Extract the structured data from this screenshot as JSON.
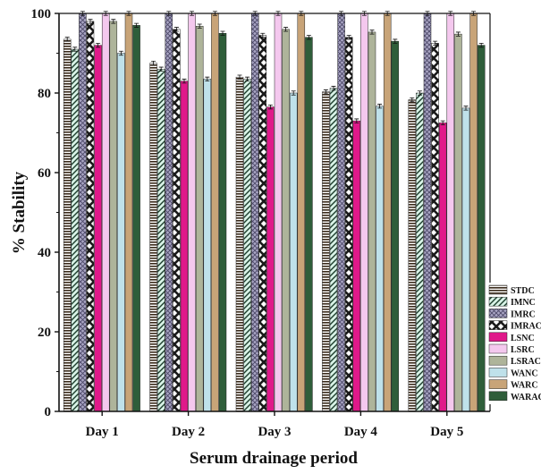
{
  "chart_data": {
    "type": "bar",
    "title": "",
    "xlabel": "Serum drainage period",
    "ylabel": "% Stability",
    "ylim": [
      0,
      100
    ],
    "yticks": [
      0,
      20,
      40,
      60,
      80,
      100
    ],
    "grid": false,
    "legend_position": "bottom-right",
    "categories": [
      "Day 1",
      "Day 2",
      "Day 3",
      "Day 4",
      "Day 5"
    ],
    "series": [
      {
        "name": "STDC",
        "values": [
          93.5,
          87.5,
          84.0,
          80.3,
          78.3
        ],
        "color": "#8a6a4a",
        "pattern": "hlines"
      },
      {
        "name": "IMNC",
        "values": [
          91.0,
          86.0,
          83.5,
          81.2,
          80.0
        ],
        "color": "#cfeee0",
        "pattern": "diag"
      },
      {
        "name": "IMRC",
        "values": [
          100,
          100,
          100,
          100,
          100
        ],
        "color": "#9a96b6",
        "pattern": "cross"
      },
      {
        "name": "IMRAC",
        "values": [
          98.0,
          96.0,
          94.5,
          94.0,
          92.5
        ],
        "color": "#ffffff",
        "pattern": "zigzag"
      },
      {
        "name": "LSNC",
        "values": [
          92.0,
          83.0,
          76.5,
          73.0,
          72.5
        ],
        "color": "#e0198a",
        "pattern": "solid"
      },
      {
        "name": "LSRC",
        "values": [
          100,
          100,
          100,
          100,
          100
        ],
        "color": "#f4c8ee",
        "pattern": "solid"
      },
      {
        "name": "LSRAC",
        "values": [
          98.0,
          96.8,
          96.0,
          95.3,
          94.8
        ],
        "color": "#aeb49a",
        "pattern": "solid"
      },
      {
        "name": "WANC",
        "values": [
          90.0,
          83.5,
          80.0,
          76.7,
          76.2
        ],
        "color": "#bfe1ea",
        "pattern": "solid"
      },
      {
        "name": "WARC",
        "values": [
          100,
          100,
          100,
          100,
          100
        ],
        "color": "#c8a478",
        "pattern": "solid"
      },
      {
        "name": "WARAC",
        "values": [
          97.0,
          95.0,
          94.0,
          93.0,
          92.0
        ],
        "color": "#2f5e3a",
        "pattern": "solid"
      }
    ]
  }
}
